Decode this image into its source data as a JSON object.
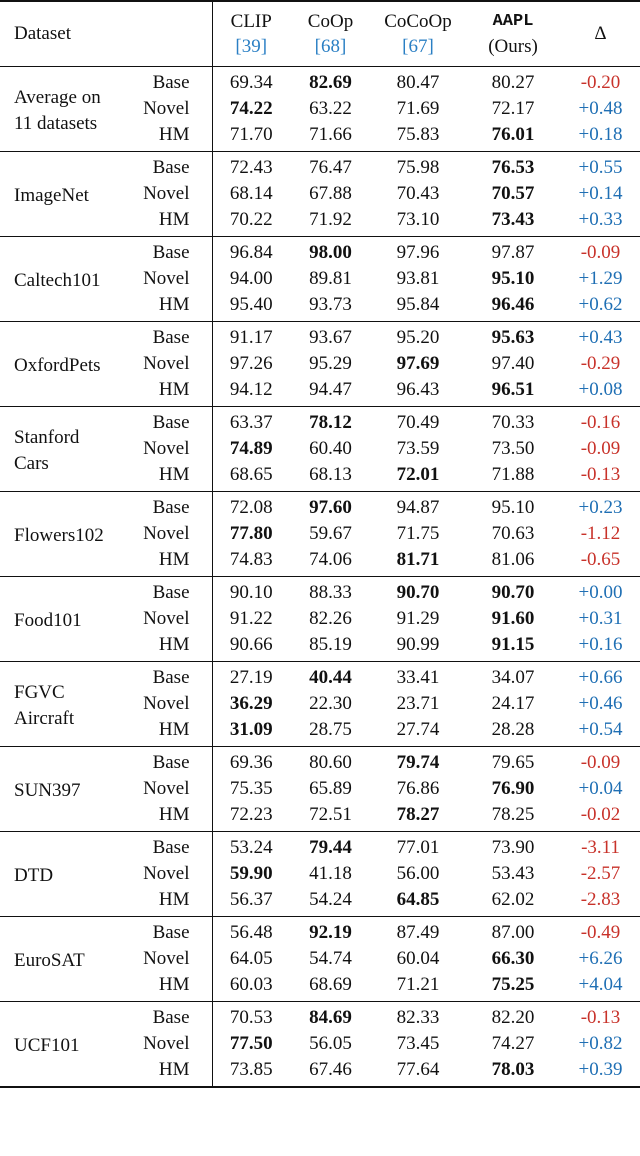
{
  "header": {
    "dataset": "Dataset",
    "clip": "CLIP",
    "clip_cite": "[39]",
    "coop": "CoOp",
    "coop_cite": "[68]",
    "cocoop": "CoCoOp",
    "cocoop_cite": "[67]",
    "aapl": "AAPL",
    "aapl_sub": "(Ours)",
    "delta": "Δ"
  },
  "colors": {
    "positive": "#1f6fb4",
    "negative": "#c8322a",
    "citation": "#2a7fc4"
  },
  "groups": [
    {
      "name": [
        "Average on",
        "11 datasets"
      ],
      "rows": [
        {
          "label": "Base",
          "clip": "69.34",
          "coop": "82.69",
          "cocoop": "80.47",
          "aapl": "80.27",
          "delta": "-0.20",
          "bold": "coop"
        },
        {
          "label": "Novel",
          "clip": "74.22",
          "coop": "63.22",
          "cocoop": "71.69",
          "aapl": "72.17",
          "delta": "+0.48",
          "bold": "clip"
        },
        {
          "label": "HM",
          "clip": "71.70",
          "coop": "71.66",
          "cocoop": "75.83",
          "aapl": "76.01",
          "delta": "+0.18",
          "bold": "aapl"
        }
      ]
    },
    {
      "name": [
        "ImageNet"
      ],
      "rows": [
        {
          "label": "Base",
          "clip": "72.43",
          "coop": "76.47",
          "cocoop": "75.98",
          "aapl": "76.53",
          "delta": "+0.55",
          "bold": "aapl"
        },
        {
          "label": "Novel",
          "clip": "68.14",
          "coop": "67.88",
          "cocoop": "70.43",
          "aapl": "70.57",
          "delta": "+0.14",
          "bold": "aapl"
        },
        {
          "label": "HM",
          "clip": "70.22",
          "coop": "71.92",
          "cocoop": "73.10",
          "aapl": "73.43",
          "delta": "+0.33",
          "bold": "aapl"
        }
      ]
    },
    {
      "name": [
        "Caltech101"
      ],
      "rows": [
        {
          "label": "Base",
          "clip": "96.84",
          "coop": "98.00",
          "cocoop": "97.96",
          "aapl": "97.87",
          "delta": "-0.09",
          "bold": "coop"
        },
        {
          "label": "Novel",
          "clip": "94.00",
          "coop": "89.81",
          "cocoop": "93.81",
          "aapl": "95.10",
          "delta": "+1.29",
          "bold": "aapl"
        },
        {
          "label": "HM",
          "clip": "95.40",
          "coop": "93.73",
          "cocoop": "95.84",
          "aapl": "96.46",
          "delta": "+0.62",
          "bold": "aapl"
        }
      ]
    },
    {
      "name": [
        "OxfordPets"
      ],
      "rows": [
        {
          "label": "Base",
          "clip": "91.17",
          "coop": "93.67",
          "cocoop": "95.20",
          "aapl": "95.63",
          "delta": "+0.43",
          "bold": "aapl"
        },
        {
          "label": "Novel",
          "clip": "97.26",
          "coop": "95.29",
          "cocoop": "97.69",
          "aapl": "97.40",
          "delta": "-0.29",
          "bold": "cocoop"
        },
        {
          "label": "HM",
          "clip": "94.12",
          "coop": "94.47",
          "cocoop": "96.43",
          "aapl": "96.51",
          "delta": "+0.08",
          "bold": "aapl"
        }
      ]
    },
    {
      "name": [
        "Stanford",
        "Cars"
      ],
      "rows": [
        {
          "label": "Base",
          "clip": "63.37",
          "coop": "78.12",
          "cocoop": "70.49",
          "aapl": "70.33",
          "delta": "-0.16",
          "bold": "coop"
        },
        {
          "label": "Novel",
          "clip": "74.89",
          "coop": "60.40",
          "cocoop": "73.59",
          "aapl": "73.50",
          "delta": "-0.09",
          "bold": "clip"
        },
        {
          "label": "HM",
          "clip": "68.65",
          "coop": "68.13",
          "cocoop": "72.01",
          "aapl": "71.88",
          "delta": "-0.13",
          "bold": "cocoop"
        }
      ]
    },
    {
      "name": [
        "Flowers102"
      ],
      "rows": [
        {
          "label": "Base",
          "clip": "72.08",
          "coop": "97.60",
          "cocoop": "94.87",
          "aapl": "95.10",
          "delta": "+0.23",
          "bold": "coop"
        },
        {
          "label": "Novel",
          "clip": "77.80",
          "coop": "59.67",
          "cocoop": "71.75",
          "aapl": "70.63",
          "delta": "-1.12",
          "bold": "clip"
        },
        {
          "label": "HM",
          "clip": "74.83",
          "coop": "74.06",
          "cocoop": "81.71",
          "aapl": "81.06",
          "delta": "-0.65",
          "bold": "cocoop"
        }
      ]
    },
    {
      "name": [
        "Food101"
      ],
      "rows": [
        {
          "label": "Base",
          "clip": "90.10",
          "coop": "88.33",
          "cocoop": "90.70",
          "aapl": "90.70",
          "delta": "+0.00",
          "bold": "cocoop,aapl"
        },
        {
          "label": "Novel",
          "clip": "91.22",
          "coop": "82.26",
          "cocoop": "91.29",
          "aapl": "91.60",
          "delta": "+0.31",
          "bold": "aapl"
        },
        {
          "label": "HM",
          "clip": "90.66",
          "coop": "85.19",
          "cocoop": "90.99",
          "aapl": "91.15",
          "delta": "+0.16",
          "bold": "aapl"
        }
      ]
    },
    {
      "name": [
        "FGVC",
        "Aircraft"
      ],
      "rows": [
        {
          "label": "Base",
          "clip": "27.19",
          "coop": "40.44",
          "cocoop": "33.41",
          "aapl": "34.07",
          "delta": "+0.66",
          "bold": "coop"
        },
        {
          "label": "Novel",
          "clip": "36.29",
          "coop": "22.30",
          "cocoop": "23.71",
          "aapl": "24.17",
          "delta": "+0.46",
          "bold": "clip"
        },
        {
          "label": "HM",
          "clip": "31.09",
          "coop": "28.75",
          "cocoop": "27.74",
          "aapl": "28.28",
          "delta": "+0.54",
          "bold": "clip"
        }
      ]
    },
    {
      "name": [
        "SUN397"
      ],
      "rows": [
        {
          "label": "Base",
          "clip": "69.36",
          "coop": "80.60",
          "cocoop": "79.74",
          "aapl": "79.65",
          "delta": "-0.09",
          "bold": "cocoop"
        },
        {
          "label": "Novel",
          "clip": "75.35",
          "coop": "65.89",
          "cocoop": "76.86",
          "aapl": "76.90",
          "delta": "+0.04",
          "bold": "aapl"
        },
        {
          "label": "HM",
          "clip": "72.23",
          "coop": "72.51",
          "cocoop": "78.27",
          "aapl": "78.25",
          "delta": "-0.02",
          "bold": "cocoop"
        }
      ]
    },
    {
      "name": [
        "DTD"
      ],
      "rows": [
        {
          "label": "Base",
          "clip": "53.24",
          "coop": "79.44",
          "cocoop": "77.01",
          "aapl": "73.90",
          "delta": "-3.11",
          "bold": "coop"
        },
        {
          "label": "Novel",
          "clip": "59.90",
          "coop": "41.18",
          "cocoop": "56.00",
          "aapl": "53.43",
          "delta": "-2.57",
          "bold": "clip"
        },
        {
          "label": "HM",
          "clip": "56.37",
          "coop": "54.24",
          "cocoop": "64.85",
          "aapl": "62.02",
          "delta": "-2.83",
          "bold": "cocoop"
        }
      ]
    },
    {
      "name": [
        "EuroSAT"
      ],
      "rows": [
        {
          "label": "Base",
          "clip": "56.48",
          "coop": "92.19",
          "cocoop": "87.49",
          "aapl": "87.00",
          "delta": "-0.49",
          "bold": "coop"
        },
        {
          "label": "Novel",
          "clip": "64.05",
          "coop": "54.74",
          "cocoop": "60.04",
          "aapl": "66.30",
          "delta": "+6.26",
          "bold": "aapl"
        },
        {
          "label": "HM",
          "clip": "60.03",
          "coop": "68.69",
          "cocoop": "71.21",
          "aapl": "75.25",
          "delta": "+4.04",
          "bold": "aapl"
        }
      ]
    },
    {
      "name": [
        "UCF101"
      ],
      "rows": [
        {
          "label": "Base",
          "clip": "70.53",
          "coop": "84.69",
          "cocoop": "82.33",
          "aapl": "82.20",
          "delta": "-0.13",
          "bold": "coop"
        },
        {
          "label": "Novel",
          "clip": "77.50",
          "coop": "56.05",
          "cocoop": "73.45",
          "aapl": "74.27",
          "delta": "+0.82",
          "bold": "clip"
        },
        {
          "label": "HM",
          "clip": "73.85",
          "coop": "67.46",
          "cocoop": "77.64",
          "aapl": "78.03",
          "delta": "+0.39",
          "bold": "aapl"
        }
      ]
    }
  ]
}
